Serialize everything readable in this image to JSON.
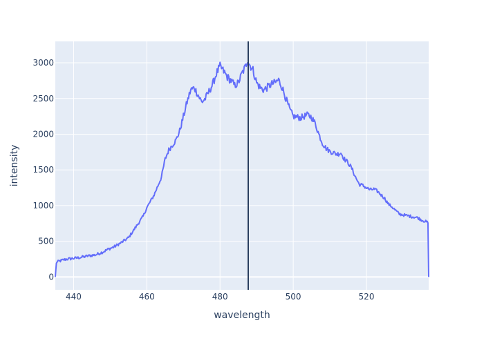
{
  "chart_data": {
    "type": "line",
    "xlabel": "wavelength",
    "ylabel": "intensity",
    "xlim": [
      435,
      537
    ],
    "ylim": [
      -180,
      3300
    ],
    "xticks": [
      440,
      460,
      480,
      500,
      520
    ],
    "yticks": [
      0,
      500,
      1000,
      1500,
      2000,
      2500,
      3000
    ],
    "grid": true,
    "legend": "none",
    "colors": {
      "plot_background": "#e5ecf6",
      "grid": "#ffffff",
      "line": "#636efa",
      "vline": "#2a3f5f",
      "text": "#2a3f5f"
    },
    "series": [
      {
        "x": [
          435,
          435.3,
          436,
          438,
          440,
          442,
          444,
          446,
          448,
          449.5,
          451,
          453,
          455,
          457,
          459,
          460,
          462,
          464,
          465,
          466,
          467,
          468,
          469,
          470,
          471,
          472,
          473,
          474,
          475,
          476,
          477,
          478,
          479,
          480,
          481,
          482,
          483,
          484,
          485,
          486,
          487,
          487.5,
          488,
          489,
          490,
          491,
          492,
          493,
          494,
          495,
          496,
          497,
          498,
          499,
          500,
          501,
          502,
          503,
          504,
          505,
          506,
          507,
          508,
          509,
          510,
          511,
          512,
          513,
          514,
          515,
          516,
          517,
          518,
          519,
          520,
          521,
          522,
          523,
          524,
          525,
          526,
          527,
          528,
          529,
          530,
          531,
          532,
          533,
          534,
          535,
          536,
          536.8,
          537
        ],
        "y": [
          0,
          200,
          220,
          250,
          260,
          275,
          295,
          310,
          350,
          390,
          420,
          480,
          550,
          700,
          850,
          970,
          1150,
          1400,
          1650,
          1780,
          1850,
          1920,
          2050,
          2250,
          2450,
          2620,
          2650,
          2550,
          2450,
          2500,
          2600,
          2700,
          2850,
          2950,
          2880,
          2800,
          2750,
          2680,
          2720,
          2850,
          2950,
          3050,
          2980,
          2900,
          2720,
          2650,
          2620,
          2660,
          2700,
          2720,
          2760,
          2650,
          2500,
          2350,
          2250,
          2240,
          2230,
          2250,
          2270,
          2240,
          2150,
          2000,
          1870,
          1800,
          1760,
          1740,
          1720,
          1740,
          1650,
          1600,
          1520,
          1400,
          1300,
          1280,
          1250,
          1220,
          1230,
          1200,
          1150,
          1100,
          1020,
          980,
          930,
          880,
          870,
          860,
          850,
          840,
          830,
          800,
          780,
          760,
          0
        ]
      }
    ],
    "vline": {
      "x": 487.7
    }
  }
}
